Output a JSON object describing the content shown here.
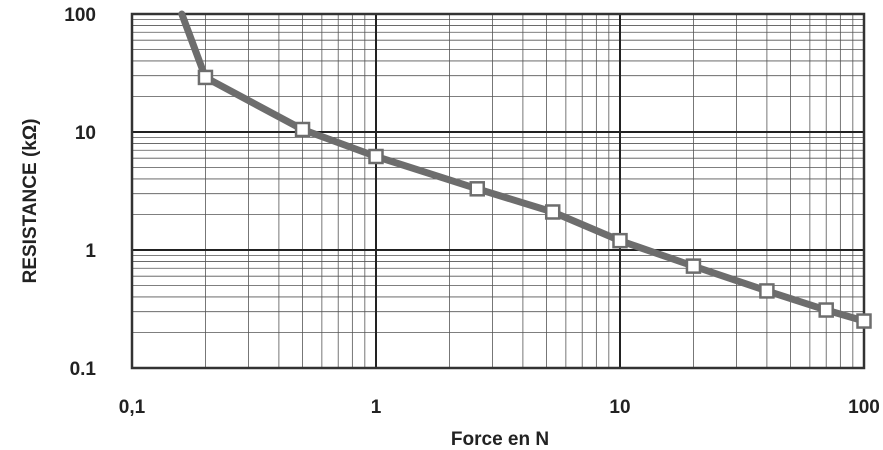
{
  "chart_data": {
    "type": "line",
    "x_scale": "log",
    "y_scale": "log",
    "xlim": [
      0.1,
      100
    ],
    "ylim": [
      0.1,
      100
    ],
    "xlabel": "Force en N",
    "ylabel": "RESISTANCE (kΩ)",
    "x_ticks": [
      "0,1",
      "1",
      "10",
      "100"
    ],
    "y_ticks": [
      "0.1",
      "1",
      "10",
      "100"
    ],
    "grid": true,
    "line_color": "#6d6d6d",
    "marker_color": "#ffffff",
    "curve_start": {
      "x": 0.16,
      "y": 100
    },
    "series": [
      {
        "points": [
          {
            "x": 0.2,
            "y": 29
          },
          {
            "x": 0.5,
            "y": 10.5
          },
          {
            "x": 1.0,
            "y": 6.2
          },
          {
            "x": 2.6,
            "y": 3.3
          },
          {
            "x": 5.3,
            "y": 2.1
          },
          {
            "x": 10,
            "y": 1.2
          },
          {
            "x": 20,
            "y": 0.73
          },
          {
            "x": 40,
            "y": 0.45
          },
          {
            "x": 70,
            "y": 0.31
          },
          {
            "x": 100,
            "y": 0.25
          }
        ]
      }
    ]
  }
}
